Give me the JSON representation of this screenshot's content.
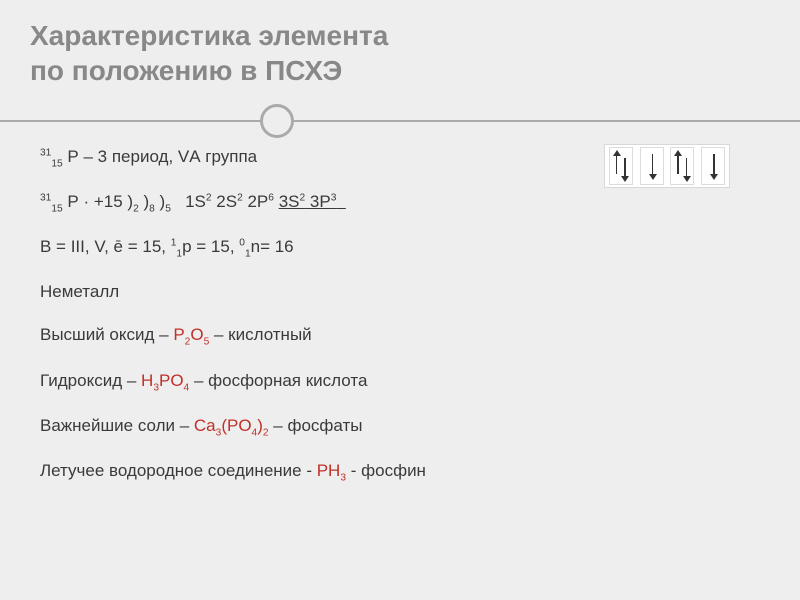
{
  "title_line1": "Характеристика элемента",
  "title_line2": "по положению в ПСХЭ",
  "line1": {
    "pre": "³¹₁₅ Р – ",
    "period": "3 период, VА группа"
  },
  "line2": {
    "symbol_pre": "³¹₁₅ Р · +15 )",
    "shell1": "₂",
    "paren2": " )",
    "shell2": "₈",
    "paren3": " )",
    "shell3": "₅",
    "config_a": "  1S² 2S² 2P⁶ ",
    "config_b": "3S² 3P³"
  },
  "line3": "В = III, V, ē = 15, ¹₁p = 15, ⁰₁n= 16",
  "line4": "Неметалл",
  "line5": {
    "label": "Высший оксид – ",
    "formula": "P₂O₅",
    "after": " – кислотный"
  },
  "line6": {
    "label": "Гидроксид – ",
    "formula": "H₃PO₄",
    "after": " – фосфорная кислота"
  },
  "line7": {
    "label": "Важнейшие соли – ",
    "formula": "Ca₃(PO₄)₂",
    "after": " – фосфаты"
  },
  "line8": {
    "label": "Летучее водородное соединение  - ",
    "formula": "PH₃",
    "after": " - фосфин"
  },
  "orbitals": {
    "cells": [
      {
        "spins": [
          "up",
          "down"
        ]
      },
      {
        "spins": [
          "down"
        ]
      },
      {
        "spins": [
          "up",
          "down"
        ]
      },
      {
        "spins": [
          "down"
        ]
      }
    ]
  },
  "colors": {
    "bg": "#eeeeee",
    "title": "#888888",
    "text": "#3a3a3a",
    "accent": "#c03028",
    "divider": "#aaaaaa",
    "orbital_bg": "#ffffff",
    "orbital_border": "#d8d8d8"
  }
}
